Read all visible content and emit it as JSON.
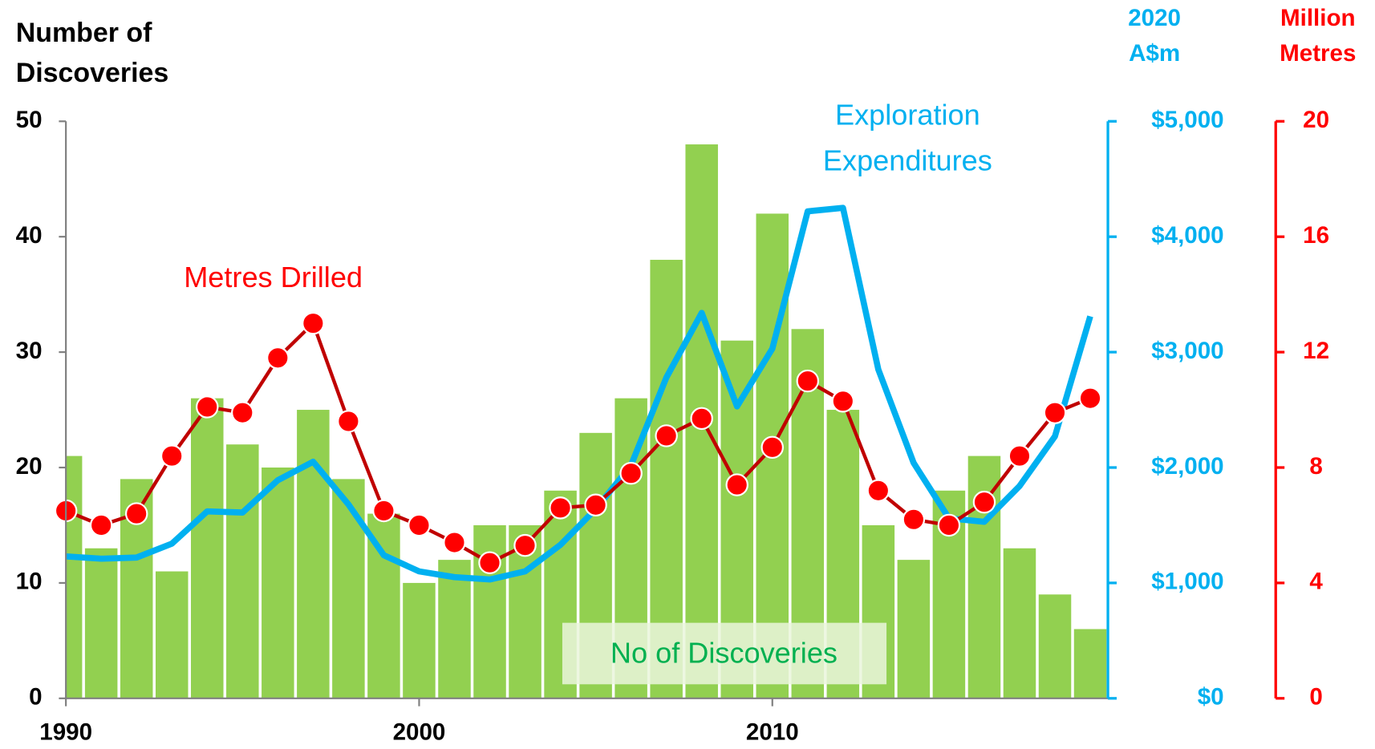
{
  "chart_data": {
    "type": "bar-line",
    "y_title": [
      "Number of",
      "Discoveries"
    ],
    "y2_title": [
      "2020",
      "A$m"
    ],
    "y3_title": [
      "Million",
      "Metres"
    ],
    "annotations": {
      "metres": "Metres Drilled",
      "expenditure": [
        "Exploration",
        "Expenditures"
      ],
      "discoveries": "No of Discoveries"
    },
    "x": [
      1990,
      1991,
      1992,
      1993,
      1994,
      1995,
      1996,
      1997,
      1998,
      1999,
      2000,
      2001,
      2002,
      2003,
      2004,
      2005,
      2006,
      2007,
      2008,
      2009,
      2010,
      2011,
      2012,
      2013,
      2014,
      2015,
      2016,
      2017,
      2018,
      2019
    ],
    "xlim": [
      1990,
      2019.5
    ],
    "xticks": [
      1990,
      2000,
      2010
    ],
    "ylim": [
      0,
      50
    ],
    "yticks": [
      0,
      10,
      20,
      30,
      40,
      50
    ],
    "y2lim": [
      0,
      5000
    ],
    "y2ticks": [
      {
        "value": 0,
        "label": "$0"
      },
      {
        "value": 1000,
        "label": "$1,000"
      },
      {
        "value": 2000,
        "label": "$2,000"
      },
      {
        "value": 3000,
        "label": "$3,000"
      },
      {
        "value": 4000,
        "label": "$4,000"
      },
      {
        "value": 5000,
        "label": "$5,000"
      }
    ],
    "y3lim": [
      0,
      20
    ],
    "y3ticks": [
      0,
      4,
      8,
      12,
      16,
      20
    ],
    "series": [
      {
        "type": "bar",
        "color": "#92d050",
        "axis": "y",
        "values": [
          21,
          13,
          19,
          11,
          26,
          22,
          20,
          25,
          19,
          16,
          10,
          12,
          15,
          15,
          18,
          23,
          26,
          38,
          48,
          31,
          42,
          32,
          25,
          15,
          12,
          18,
          21,
          13,
          9,
          6
        ]
      },
      {
        "type": "line",
        "color": "#00b0f0",
        "axis": "y2",
        "values": [
          1230,
          1210,
          1220,
          1340,
          1620,
          1610,
          1890,
          2050,
          1680,
          1240,
          1100,
          1050,
          1030,
          1100,
          1330,
          1640,
          2020,
          2780,
          3340,
          2530,
          3030,
          4220,
          4250,
          2850,
          2040,
          1560,
          1530,
          1840,
          2270,
          3310
        ]
      },
      {
        "type": "line-marker",
        "color": "#c00000",
        "marker_color": "#ff0000",
        "axis": "y3",
        "values": [
          6.5,
          6.0,
          6.4,
          8.4,
          10.1,
          9.9,
          11.8,
          13.0,
          9.6,
          6.5,
          6.0,
          5.4,
          4.7,
          5.3,
          6.6,
          6.7,
          7.8,
          9.1,
          9.7,
          7.4,
          8.7,
          11.0,
          10.3,
          7.2,
          6.2,
          6.0,
          6.8,
          8.4,
          9.9,
          10.4
        ]
      }
    ]
  }
}
